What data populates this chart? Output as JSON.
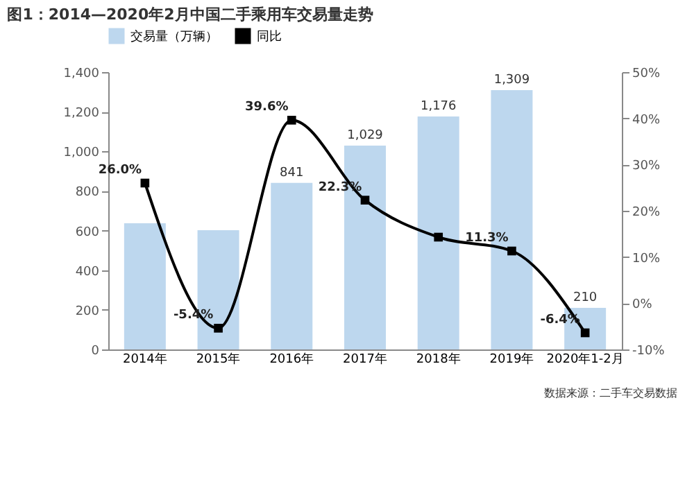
{
  "chart_data": {
    "type": "bar",
    "title": "图1：2014—2020年2月中国二手乘用车交易量走势",
    "categories": [
      "2014年",
      "2015年",
      "2016年",
      "2017年",
      "2018年",
      "2019年",
      "2020年1-2月"
    ],
    "series": [
      {
        "name": "交易量（万辆）",
        "color": "#bdd7ee",
        "values": [
          637,
          602,
          841,
          1029,
          1176,
          1309,
          210
        ],
        "value_labels": [
          null,
          null,
          "841",
          "1,029",
          "1,176",
          "1,309",
          "210"
        ]
      },
      {
        "name": "同比",
        "type": "line",
        "axis": "y2",
        "color": "#000000",
        "marker": "square",
        "values": [
          26.0,
          -5.4,
          39.6,
          22.3,
          14.3,
          11.3,
          -6.4
        ],
        "value_labels": [
          "26.0%",
          "-5.4%",
          "39.6%",
          "22.3%",
          null,
          "11.3%",
          "-6.4%"
        ]
      }
    ],
    "ylim": [
      0,
      1400
    ],
    "yticks": [
      0,
      {
        "value": 200,
        "label": "200"
      },
      {
        "value": 400,
        "label": "400"
      },
      {
        "value": 600,
        "label": "600"
      },
      {
        "value": 800,
        "label": "800"
      },
      {
        "value": 1000,
        "label": "1,000"
      },
      {
        "value": 1200,
        "label": "1,200"
      },
      {
        "value": 1400,
        "label": "1,400"
      }
    ],
    "y2lim": [
      -10,
      50
    ],
    "y2ticks": [
      {
        "value": -10,
        "label": "-10%"
      },
      {
        "value": 0,
        "label": "0%"
      },
      {
        "value": 10,
        "label": "10%"
      },
      {
        "value": 20,
        "label": "20%"
      },
      {
        "value": 30,
        "label": "30%"
      },
      {
        "value": 40,
        "label": "40%"
      },
      {
        "value": 50,
        "label": "50%"
      }
    ],
    "grid": false,
    "legend": "top",
    "annotations": [
      "数据来源：二手车交易数据"
    ]
  }
}
